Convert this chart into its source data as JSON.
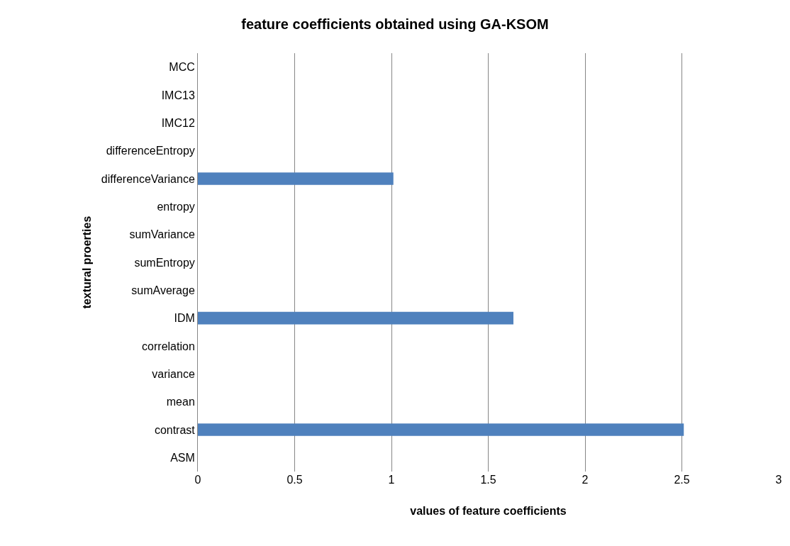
{
  "chart_data": {
    "type": "bar",
    "orientation": "horizontal",
    "title": "feature coefficients obtained using GA-KSOM",
    "xlabel": "values of feature coefficients",
    "ylabel": "textural proerties",
    "categories": [
      "MCC",
      "IMC13",
      "IMC12",
      "differenceEntropy",
      "differenceVariance",
      "entropy",
      "sumVariance",
      "sumEntropy",
      "sumAverage",
      "IDM",
      "correlation",
      "variance",
      "mean",
      "contrast",
      "ASM"
    ],
    "values": [
      0,
      0,
      0,
      0,
      1.01,
      0,
      0,
      0,
      0,
      1.63,
      0,
      0,
      0,
      2.51,
      0
    ],
    "color": "#4f81bd",
    "xlim": [
      0,
      3
    ],
    "xticks": [
      0,
      0.5,
      1,
      1.5,
      2,
      2.5,
      3
    ],
    "grid": "x"
  }
}
